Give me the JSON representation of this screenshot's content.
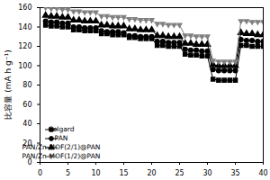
{
  "chart_data": {
    "type": "line",
    "y_label": "比容量 (mA h g⁻¹)",
    "x": [
      1,
      2,
      3,
      4,
      5,
      6,
      7,
      8,
      9,
      10,
      11,
      12,
      13,
      14,
      15,
      16,
      17,
      18,
      19,
      20,
      21,
      22,
      23,
      24,
      25,
      26,
      27,
      28,
      29,
      30,
      31,
      32,
      33,
      34,
      35,
      36,
      37,
      38,
      39,
      40
    ],
    "series": [
      {
        "name": "Celgard",
        "color": "#000000",
        "marker": "square",
        "line_style": "solid",
        "values": [
          142,
          141,
          141,
          140,
          140,
          137,
          137,
          136,
          136,
          136,
          133,
          133,
          132,
          132,
          132,
          129,
          129,
          128,
          128,
          128,
          121,
          121,
          120,
          120,
          120,
          112,
          111,
          111,
          110,
          110,
          86,
          85,
          85,
          85,
          85,
          121,
          121,
          120,
          120,
          120
        ]
      },
      {
        "name": "PAN",
        "color": "#000000",
        "marker": "circle",
        "line_style": "solid",
        "values": [
          146,
          145,
          145,
          144,
          144,
          140,
          140,
          139,
          139,
          139,
          136,
          135,
          135,
          135,
          134,
          131,
          131,
          130,
          130,
          130,
          125,
          125,
          124,
          124,
          124,
          117,
          116,
          116,
          115,
          115,
          96,
          95,
          95,
          95,
          95,
          127,
          126,
          126,
          125,
          125
        ]
      },
      {
        "name": "PAN/Zn-MOF(2/1)@PAN",
        "color": "#000000",
        "marker": "triangle-up",
        "line_style": "solid",
        "values": [
          152,
          151,
          151,
          150,
          150,
          147,
          147,
          146,
          146,
          146,
          142,
          142,
          141,
          141,
          141,
          138,
          138,
          137,
          137,
          137,
          131,
          131,
          130,
          130,
          130,
          123,
          123,
          122,
          122,
          122,
          101,
          100,
          100,
          100,
          100,
          134,
          133,
          133,
          132,
          132
        ]
      },
      {
        "name": "PAN/Zn-MOF(1/2)@PAN",
        "color": "#808080",
        "marker": "triangle-down",
        "line_style": "solid",
        "values": [
          160,
          159,
          159,
          158,
          158,
          156,
          156,
          155,
          155,
          155,
          151,
          151,
          150,
          150,
          150,
          148,
          148,
          147,
          147,
          147,
          143,
          143,
          142,
          142,
          142,
          131,
          131,
          130,
          130,
          130,
          105,
          104,
          104,
          104,
          104,
          146,
          146,
          145,
          145,
          145
        ]
      }
    ],
    "xlim": [
      0,
      40
    ],
    "xticks": [
      0,
      5,
      10,
      15,
      20,
      25,
      30,
      35,
      40
    ],
    "ylim": [
      0,
      160
    ],
    "yticks": [
      0,
      20,
      40,
      60,
      80,
      100,
      120,
      140,
      160
    ],
    "legend": "lower left",
    "grid": false
  }
}
